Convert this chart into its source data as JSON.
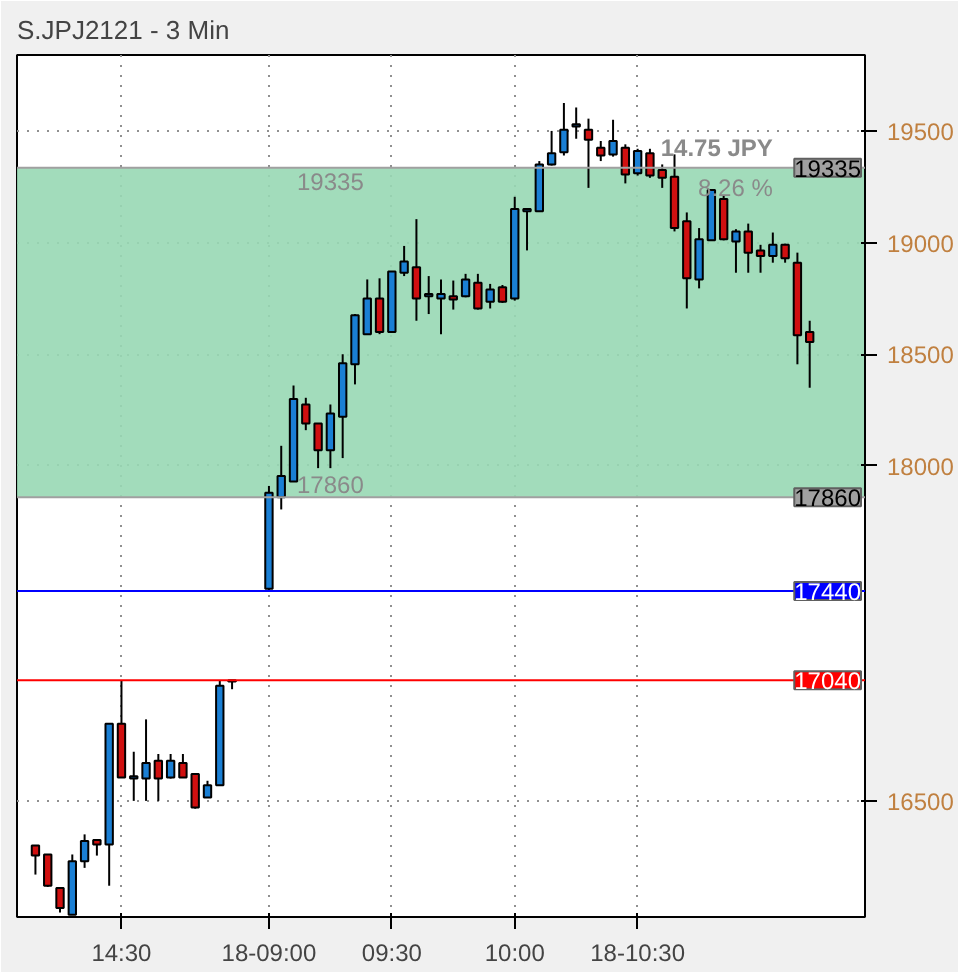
{
  "chart_data": {
    "type": "candlestick",
    "title": "S.JPJ2121 - 3 Min",
    "categories": [
      null,
      null,
      null,
      null,
      null,
      null,
      null,
      "14:30",
      null,
      null,
      null,
      null,
      null,
      null,
      null,
      null,
      null,
      null,
      null,
      "18-09:00",
      null,
      null,
      null,
      null,
      null,
      null,
      null,
      null,
      null,
      "09:30",
      null,
      null,
      null,
      null,
      null,
      null,
      null,
      null,
      null,
      "10:00",
      null,
      null,
      null,
      null,
      null,
      null,
      null,
      null,
      null,
      "18-10:30",
      null,
      null,
      null,
      null,
      null,
      null,
      null,
      null,
      null,
      null,
      null,
      null,
      null,
      null
    ],
    "ohlc": [
      [
        16300,
        16300,
        16170,
        16255
      ],
      [
        16260,
        16260,
        16115,
        16120
      ],
      [
        16110,
        16110,
        16000,
        16020
      ],
      [
        15990,
        16260,
        15990,
        16230
      ],
      [
        16230,
        16350,
        16200,
        16320
      ],
      [
        16325,
        16325,
        16255,
        16305
      ],
      [
        16305,
        16845,
        16120,
        16845
      ],
      [
        16845,
        17040,
        16605,
        16605
      ],
      [
        16600,
        16720,
        16500,
        16610
      ],
      [
        16600,
        16865,
        16500,
        16670
      ],
      [
        16680,
        16710,
        16500,
        16600
      ],
      [
        16605,
        16710,
        16600,
        16680
      ],
      [
        16670,
        16710,
        16605,
        16605
      ],
      [
        16620,
        16620,
        16465,
        16470
      ],
      [
        16515,
        16590,
        16515,
        16570
      ],
      [
        16570,
        17040,
        16570,
        17015
      ],
      [
        17035,
        17040,
        17000,
        17040
      ],
      null,
      null,
      [
        17450,
        17910,
        17440,
        17880
      ],
      [
        17860,
        18090,
        17805,
        17955
      ],
      [
        17930,
        18360,
        17930,
        18300
      ],
      [
        18275,
        18305,
        18160,
        18190
      ],
      [
        18190,
        18190,
        17990,
        18070
      ],
      [
        18070,
        18275,
        17990,
        18235
      ],
      [
        18220,
        18500,
        18035,
        18460
      ],
      [
        18455,
        18680,
        18365,
        18675
      ],
      [
        18590,
        18835,
        18590,
        18750
      ],
      [
        18750,
        18840,
        18590,
        18600
      ],
      [
        18600,
        18870,
        18600,
        18870
      ],
      [
        18865,
        18985,
        18850,
        18915
      ],
      [
        18890,
        19105,
        18650,
        18750
      ],
      [
        18760,
        18850,
        18680,
        18770
      ],
      [
        18750,
        18835,
        18590,
        18770
      ],
      [
        18760,
        18830,
        18700,
        18745
      ],
      [
        18760,
        18860,
        18755,
        18835
      ],
      [
        18820,
        18860,
        18700,
        18705
      ],
      [
        18735,
        18815,
        18705,
        18790
      ],
      [
        18800,
        18810,
        18730,
        18735
      ],
      [
        18750,
        19205,
        18740,
        19150
      ],
      [
        19140,
        19150,
        18965,
        19150
      ],
      [
        19140,
        19365,
        19140,
        19350
      ],
      [
        19350,
        19500,
        19345,
        19400
      ],
      [
        19405,
        19625,
        19390,
        19505
      ],
      [
        19520,
        19605,
        19465,
        19530
      ],
      [
        19505,
        19555,
        19245,
        19460
      ],
      [
        19425,
        19455,
        19365,
        19390
      ],
      [
        19395,
        19550,
        19385,
        19455
      ],
      [
        19425,
        19440,
        19265,
        19305
      ],
      [
        19310,
        19420,
        19300,
        19410
      ],
      [
        19400,
        19420,
        19290,
        19300
      ],
      [
        19325,
        19350,
        19245,
        19290
      ],
      [
        19295,
        19395,
        19050,
        19065
      ],
      [
        19095,
        19135,
        18705,
        18840
      ],
      [
        18835,
        19065,
        18795,
        19015
      ],
      [
        19010,
        19235,
        19010,
        19235
      ],
      [
        19195,
        19210,
        19010,
        19015
      ],
      [
        19005,
        19060,
        18865,
        19050
      ],
      [
        19050,
        19085,
        18865,
        18955
      ],
      [
        18965,
        18990,
        18865,
        18940
      ],
      [
        18940,
        19045,
        18910,
        18990
      ],
      [
        18990,
        18995,
        18910,
        18930
      ],
      [
        18910,
        18955,
        18455,
        18585
      ],
      [
        18600,
        18650,
        18350,
        18555
      ]
    ],
    "colors": [
      "#d01010",
      "#d01010",
      "#d01010",
      "#1a7fd4",
      "#1a7fd4",
      "#d01010",
      "#1a7fd4",
      "#d01010",
      "#1a7fd4",
      "#1a7fd4",
      "#d01010",
      "#1a7fd4",
      "#d01010",
      "#d01010",
      "#1a7fd4",
      "#1a7fd4",
      "#1a7fd4",
      null,
      null,
      "#1a7fd4",
      "#1a7fd4",
      "#1a7fd4",
      "#d01010",
      "#d01010",
      "#1a7fd4",
      "#1a7fd4",
      "#1a7fd4",
      "#1a7fd4",
      "#d01010",
      "#1a7fd4",
      "#1a7fd4",
      "#d01010",
      "#1a7fd4",
      "#1a7fd4",
      "#d01010",
      "#1a7fd4",
      "#d01010",
      "#1a7fd4",
      "#d01010",
      "#1a7fd4",
      "#1a7fd4",
      "#1a7fd4",
      "#1a7fd4",
      "#1a7fd4",
      "#1a7fd4",
      "#d01010",
      "#d01010",
      "#1a7fd4",
      "#d01010",
      "#1a7fd4",
      "#d01010",
      "#d01010",
      "#d01010",
      "#d01010",
      "#1a7fd4",
      "#1a7fd4",
      "#d01010",
      "#1a7fd4",
      "#d01010",
      "#d01010",
      "#1a7fd4",
      "#d01010",
      "#d01010",
      "#d01010"
    ],
    "ylim": [
      15980,
      19840
    ],
    "yticks": [
      16500,
      18000,
      18500,
      19000,
      19500
    ],
    "grid": true,
    "bands": [
      {
        "axis": "y",
        "from": 17860,
        "to": 19335,
        "label": null,
        "color": "#98d8b4"
      }
    ],
    "ref_lines": [
      {
        "axis": "y",
        "value": 19335,
        "label": "19335",
        "color": "#a0a0a0"
      },
      {
        "axis": "y",
        "value": 17860,
        "label": "17860",
        "color": "#a0a0a0"
      },
      {
        "axis": "y",
        "value": 17440,
        "label": "17440",
        "color": "#0000ff"
      },
      {
        "axis": "y",
        "value": 17040,
        "label": "17040",
        "color": "#ff0000"
      }
    ],
    "annotations": [
      "14.75 JPY",
      "8.26 %",
      {
        "text": "19335",
        "y": 19335
      },
      {
        "text": "17860",
        "y": 17860
      }
    ]
  }
}
